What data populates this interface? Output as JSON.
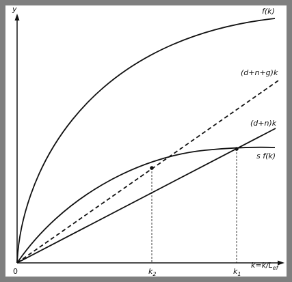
{
  "y_axis": {
    "label": "y"
  },
  "x_axis": {
    "label": {
      "main": "k=k/L",
      "sub": "ef"
    },
    "origin": "0",
    "marks": [
      {
        "main": "k",
        "sub": "2"
      },
      {
        "main": "k",
        "sub": "1"
      }
    ]
  },
  "curves": [
    {
      "label": "f(k)"
    },
    {
      "label": "(d+n+g)k"
    },
    {
      "label": "(d+n)k"
    },
    {
      "label": "s f(k)"
    }
  ]
}
